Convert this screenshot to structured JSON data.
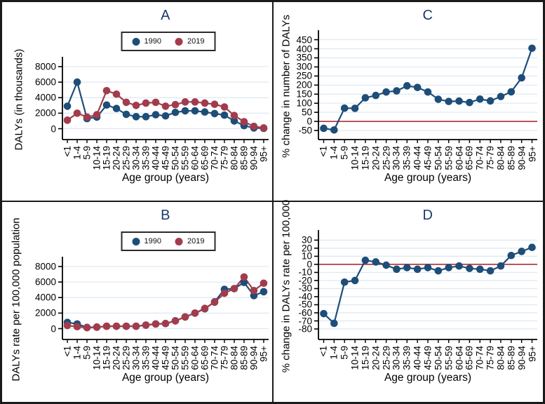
{
  "figure": {
    "x_axis_title": "Age group (years)",
    "x_categories": [
      "<1",
      "1-4",
      "5-9",
      "10-14",
      "15-19",
      "20-24",
      "25-29",
      "30-34",
      "35-39",
      "40-44",
      "45-49",
      "50-54",
      "55-59",
      "60-64",
      "65-69",
      "70-74",
      "75-79",
      "80-84",
      "85-89",
      "90-94",
      "95+"
    ],
    "legend": {
      "items": [
        {
          "label": "1990",
          "color": "#1e4d78"
        },
        {
          "label": "2019",
          "color": "#a23c4c"
        }
      ]
    },
    "colors": {
      "series_1990": "#1e4d78",
      "series_2019": "#a23c4c",
      "panel_title": "#1b3a6c",
      "gridline": "#dde8f2",
      "zero_line": "#b13c47",
      "axis": "#000000"
    }
  },
  "chart_data": [
    {
      "id": "A",
      "type": "line",
      "title": "A",
      "ylabel": "DALYs (in thousands)",
      "xlabel": "Age group (years)",
      "categories": [
        "<1",
        "1-4",
        "5-9",
        "10-14",
        "15-19",
        "20-24",
        "25-29",
        "30-34",
        "35-39",
        "40-44",
        "45-49",
        "50-54",
        "55-59",
        "60-64",
        "65-69",
        "70-74",
        "75-79",
        "80-84",
        "85-89",
        "90-94",
        "95+"
      ],
      "yticks": [
        0,
        2000,
        4000,
        6000,
        8000
      ],
      "ylim": [
        -1400,
        8900
      ],
      "grid": true,
      "legend": true,
      "zero_line": false,
      "series": [
        {
          "name": "1990",
          "color": "#1e4d78",
          "values": [
            2900,
            6000,
            1300,
            1500,
            3050,
            2600,
            1850,
            1550,
            1550,
            1800,
            1650,
            2100,
            2300,
            2300,
            2150,
            1950,
            1750,
            1000,
            400,
            100,
            50
          ]
        },
        {
          "name": "2019",
          "color": "#a23c4c",
          "values": [
            1100,
            2000,
            1500,
            1800,
            4900,
            4450,
            3400,
            3000,
            3300,
            3400,
            2900,
            3100,
            3450,
            3450,
            3300,
            3150,
            2800,
            1700,
            900,
            300,
            100
          ]
        }
      ]
    },
    {
      "id": "C",
      "type": "line",
      "title": "C",
      "ylabel": "% change in number of DALYs",
      "xlabel": "Age group (years)",
      "categories": [
        "<1",
        "1-4",
        "5-9",
        "10-14",
        "15-19",
        "20-24",
        "25-29",
        "30-34",
        "35-39",
        "40-44",
        "45-49",
        "50-54",
        "55-59",
        "60-64",
        "65-69",
        "70-74",
        "75-79",
        "80-84",
        "85-89",
        "90-94",
        "95+"
      ],
      "yticks": [
        -50,
        0,
        50,
        100,
        150,
        200,
        250,
        300,
        350,
        400,
        450
      ],
      "ylim": [
        -100,
        487
      ],
      "grid": true,
      "legend": false,
      "zero_line": true,
      "series": [
        {
          "name": "% change",
          "color": "#1e4d78",
          "values": [
            -38,
            -47,
            73,
            72,
            130,
            143,
            162,
            168,
            196,
            187,
            162,
            122,
            110,
            112,
            104,
            123,
            113,
            137,
            163,
            240,
            403
          ]
        }
      ]
    },
    {
      "id": "B",
      "type": "line",
      "title": "B",
      "ylabel": "DALYs rate per 100,000 population",
      "xlabel": "Age group (years)",
      "categories": [
        "<1",
        "1-4",
        "5-9",
        "10-14",
        "15-19",
        "20-24",
        "25-29",
        "30-34",
        "35-39",
        "40-44",
        "45-49",
        "50-54",
        "55-59",
        "60-64",
        "65-69",
        "70-74",
        "75-79",
        "80-84",
        "85-89",
        "90-94",
        "95+"
      ],
      "yticks": [
        0,
        2000,
        4000,
        6000,
        8000
      ],
      "ylim": [
        -1400,
        8900
      ],
      "grid": true,
      "legend": true,
      "zero_line": false,
      "series": [
        {
          "name": "1990",
          "color": "#1e4d78",
          "values": [
            800,
            600,
            150,
            200,
            300,
            300,
            300,
            300,
            450,
            600,
            650,
            1000,
            1500,
            2000,
            2550,
            3450,
            5050,
            5150,
            5950,
            4250,
            4750
          ]
        },
        {
          "name": "2019",
          "color": "#a23c4c",
          "values": [
            400,
            250,
            120,
            180,
            300,
            300,
            300,
            300,
            450,
            600,
            650,
            1000,
            1500,
            2000,
            2600,
            3400,
            4550,
            5150,
            6650,
            4900,
            5850
          ]
        }
      ]
    },
    {
      "id": "D",
      "type": "line",
      "title": "D",
      "ylabel": "% change in DALYs rate per 100,000",
      "xlabel": "Age group (years)",
      "categories": [
        "<1",
        "1-4",
        "5-9",
        "10-14",
        "15-19",
        "20-24",
        "25-29",
        "30-34",
        "35-39",
        "40-44",
        "45-49",
        "50-54",
        "55-59",
        "60-64",
        "65-69",
        "70-74",
        "75-79",
        "80-84",
        "85-89",
        "90-94",
        "95+"
      ],
      "yticks": [
        -80,
        -70,
        -60,
        -50,
        -40,
        -30,
        -20,
        -10,
        0,
        10,
        20,
        30
      ],
      "ylim": [
        -93,
        39
      ],
      "grid": true,
      "legend": false,
      "zero_line": true,
      "series": [
        {
          "name": "% change",
          "color": "#1e4d78",
          "values": [
            -61,
            -73,
            -22,
            -20,
            5,
            3,
            -1,
            -6,
            -4,
            -6,
            -4,
            -8,
            -4,
            -2,
            -5,
            -6,
            -8,
            -2,
            11,
            16,
            21
          ]
        }
      ]
    }
  ]
}
